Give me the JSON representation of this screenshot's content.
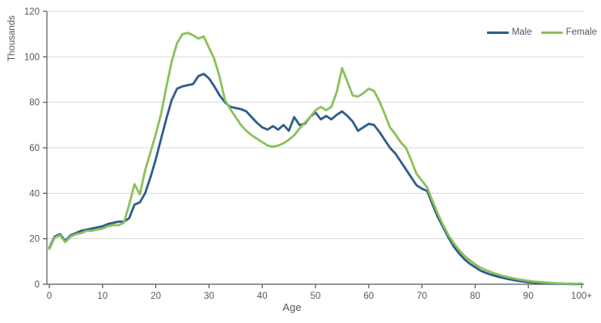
{
  "chart_data": {
    "type": "line",
    "title": "",
    "xlabel": "Age",
    "ylabel": "Thousands",
    "x_unit": "age in single years",
    "x_range": [
      0,
      100,
      1
    ],
    "xlim": [
      0,
      100
    ],
    "ylim": [
      0,
      120
    ],
    "y_ticks": [
      0,
      20,
      40,
      60,
      80,
      100,
      120
    ],
    "x_ticks": [
      {
        "age": 0,
        "label": "0"
      },
      {
        "age": 10,
        "label": "10"
      },
      {
        "age": 20,
        "label": "20"
      },
      {
        "age": 30,
        "label": "30"
      },
      {
        "age": 40,
        "label": "40"
      },
      {
        "age": 50,
        "label": "50"
      },
      {
        "age": 60,
        "label": "60"
      },
      {
        "age": 70,
        "label": "70"
      },
      {
        "age": 80,
        "label": "80"
      },
      {
        "age": 90,
        "label": "90"
      },
      {
        "age": 100,
        "label": "100+"
      }
    ],
    "grid": "horizontal",
    "legend_position": "top-right",
    "colors": {
      "male": "#2f5d8c",
      "female": "#8dc05b",
      "grid": "#d9d9d9",
      "axis": "#595959",
      "tick_text": "#595959"
    },
    "series": [
      {
        "name": "Male",
        "color": "#2f5d8c",
        "values": [
          16,
          21,
          22,
          19,
          21.5,
          22.5,
          23.5,
          24,
          24.5,
          25,
          25.5,
          26.5,
          27,
          27.5,
          27.5,
          29,
          35,
          36,
          40,
          47,
          55,
          64,
          73,
          81,
          86,
          87,
          87.5,
          88,
          91.5,
          92.5,
          90.5,
          87,
          83,
          80,
          78,
          77.5,
          77,
          76,
          73.5,
          71,
          69,
          68,
          69.5,
          68,
          70,
          67.5,
          73.5,
          70,
          70.5,
          73.5,
          75.5,
          72.5,
          74,
          72.5,
          74.5,
          76,
          74,
          71.5,
          67.5,
          69,
          70.5,
          70,
          67,
          63.5,
          60,
          57.5,
          54,
          50.5,
          47,
          43.5,
          42,
          41,
          35,
          29.5,
          25,
          20.5,
          16.5,
          13.5,
          11,
          9,
          7.5,
          6,
          5,
          4.2,
          3.5,
          2.9,
          2.4,
          1.9,
          1.5,
          1.2,
          0.9,
          0.7,
          0.5,
          0.4,
          0.3,
          0.25,
          0.2,
          0.15,
          0.1,
          0.08,
          0.15
        ]
      },
      {
        "name": "Female",
        "color": "#8dc05b",
        "values": [
          15.5,
          20.5,
          21.5,
          18.5,
          21,
          22,
          22.5,
          23.5,
          23.5,
          24,
          24.5,
          25.5,
          26,
          26,
          27,
          35,
          44,
          39.5,
          50,
          58,
          66,
          75,
          87,
          98,
          106,
          110,
          110.5,
          109.5,
          108,
          109,
          104,
          99,
          91,
          81,
          77,
          73.5,
          70,
          67.5,
          65.5,
          64,
          62.5,
          61,
          60.5,
          61,
          62,
          63.5,
          65.5,
          68.5,
          71,
          73.5,
          76.5,
          78,
          76.5,
          78,
          84.5,
          95,
          89,
          83,
          82.5,
          84,
          86,
          85,
          80.5,
          75,
          69,
          66,
          62.5,
          60,
          54.5,
          48.5,
          45.5,
          42.5,
          36.5,
          31,
          26,
          21.5,
          18,
          15,
          12.5,
          10.5,
          8.8,
          7.3,
          6.2,
          5.3,
          4.5,
          3.8,
          3.2,
          2.7,
          2.2,
          1.8,
          1.5,
          1.2,
          1,
          0.8,
          0.65,
          0.5,
          0.4,
          0.3,
          0.25,
          0.2,
          0.35
        ]
      }
    ]
  }
}
